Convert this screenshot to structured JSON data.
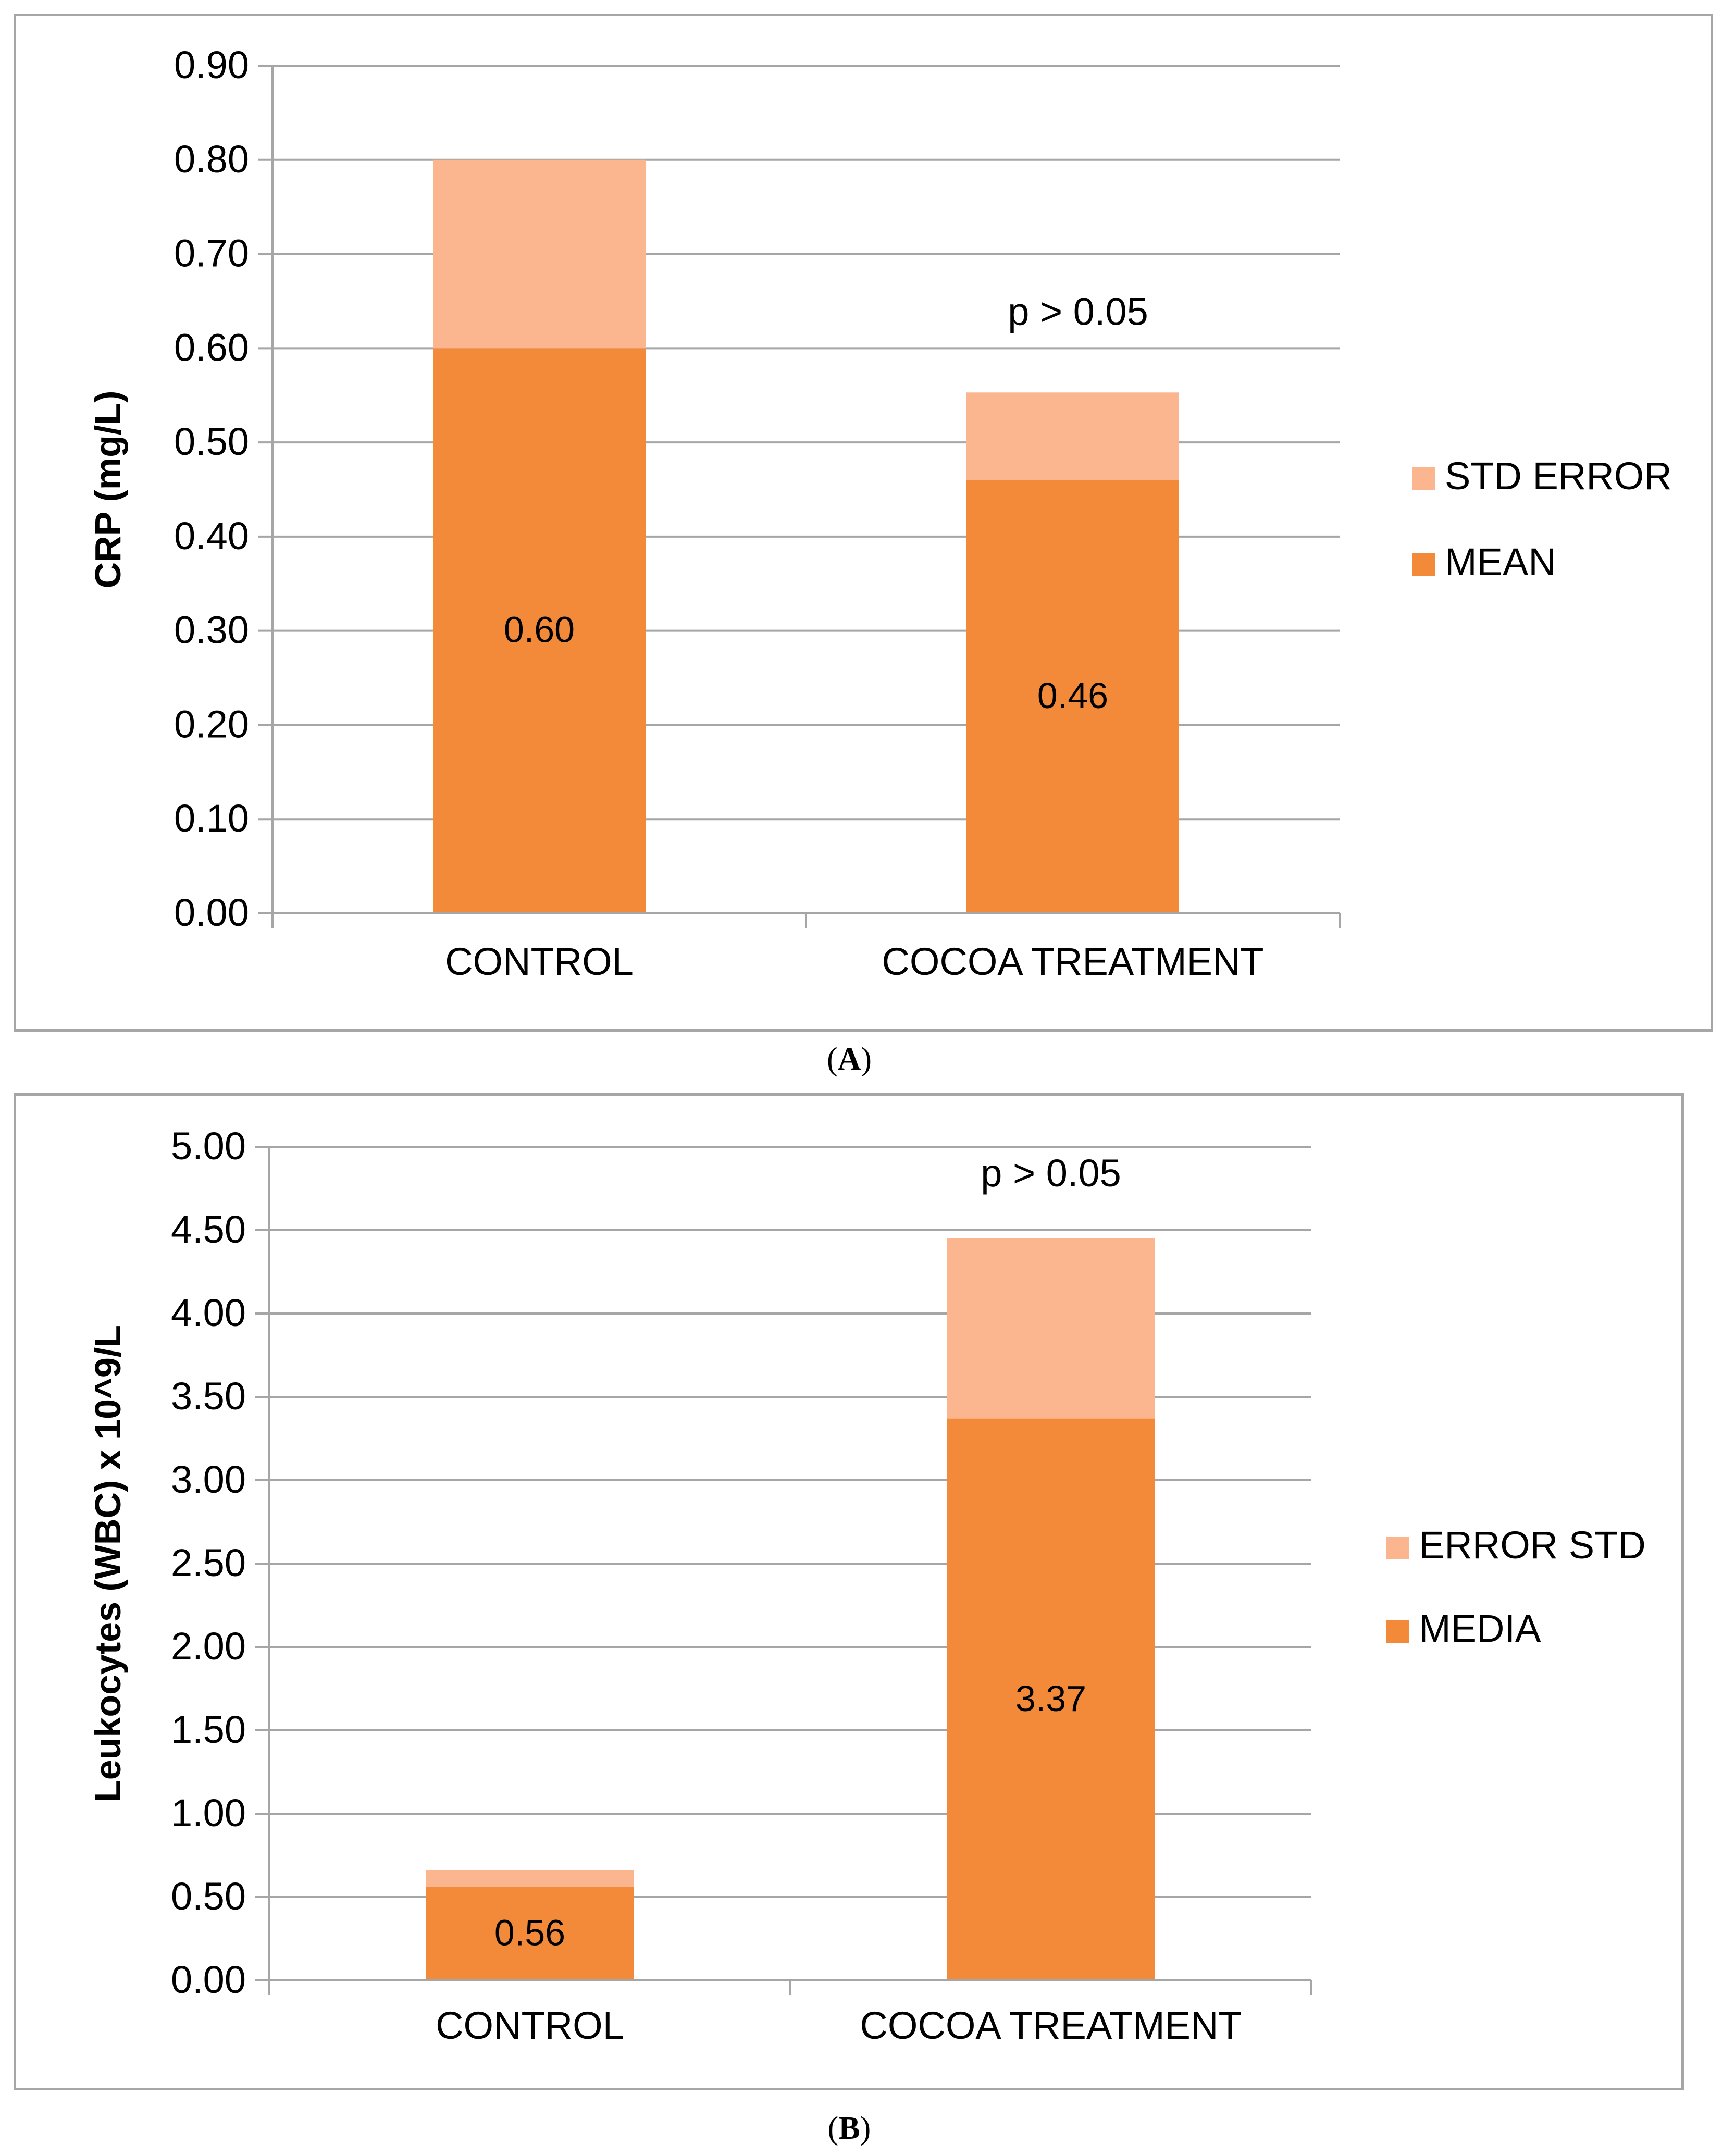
{
  "chart_data": [
    {
      "type": "bar",
      "stacked": true,
      "panel_label": "A",
      "ylabel": "CRP (mg/L)",
      "xlabel": "",
      "ylim": [
        0,
        0.9
      ],
      "yticks": [
        "0.00",
        "0.10",
        "0.20",
        "0.30",
        "0.40",
        "0.50",
        "0.60",
        "0.70",
        "0.80",
        "0.90"
      ],
      "categories": [
        "CONTROL",
        "COCOA TREATMENT"
      ],
      "series": [
        {
          "name": "MEAN",
          "values": [
            0.6,
            0.46
          ],
          "color": "#f28a3a",
          "labels": [
            "0.60",
            "0.46"
          ]
        },
        {
          "name": "STD ERROR",
          "values": [
            0.2,
            0.093
          ],
          "color": "#fbb690"
        }
      ],
      "legend": [
        "STD ERROR",
        "MEAN"
      ],
      "legend_position": "right",
      "annotation": {
        "text": "p > 0.05",
        "category_index": 1
      },
      "grid": true
    },
    {
      "type": "bar",
      "stacked": true,
      "panel_label": "B",
      "ylabel": "Leukocytes (WBC) x 10^9/L",
      "xlabel": "",
      "ylim": [
        0,
        5
      ],
      "yticks": [
        "0.00",
        "0.50",
        "1.00",
        "1.50",
        "2.00",
        "2.50",
        "3.00",
        "3.50",
        "4.00",
        "4.50",
        "5.00"
      ],
      "categories": [
        "CONTROL",
        "COCOA TREATMENT"
      ],
      "series": [
        {
          "name": "MEDIA",
          "values": [
            0.56,
            3.37
          ],
          "color": "#f28a3a",
          "labels": [
            "0.56",
            "3.37"
          ]
        },
        {
          "name": "ERROR STD",
          "values": [
            0.1,
            1.08
          ],
          "color": "#fbb690"
        }
      ],
      "legend": [
        "ERROR STD",
        "MEDIA"
      ],
      "legend_position": "right",
      "annotation": {
        "text": "p > 0.05",
        "category_index": 1
      },
      "grid": true
    }
  ],
  "captions": {
    "a": "A",
    "b": "B"
  }
}
